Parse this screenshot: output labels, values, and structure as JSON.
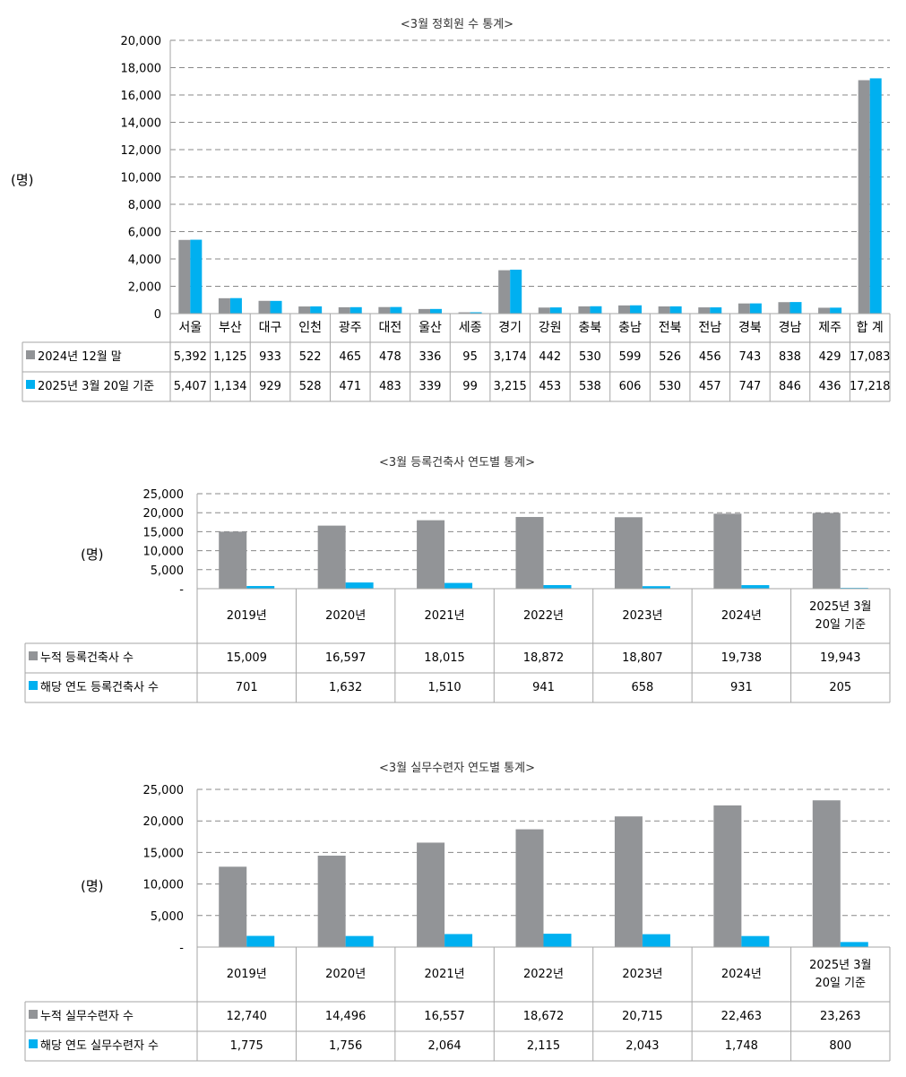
{
  "colors": {
    "series1": "#929497",
    "series2": "#00b0f0",
    "grid": "#888888",
    "border": "#a6a6a6"
  },
  "chart_data": [
    {
      "type": "bar",
      "title": "<3월 정회원 수 통계>",
      "ylabel": "(명)",
      "ylim": [
        0,
        20000
      ],
      "yticks": [
        "0",
        "2,000",
        "4,000",
        "6,000",
        "8,000",
        "10,000",
        "12,000",
        "14,000",
        "16,000",
        "18,000",
        "20,000"
      ],
      "grid": true,
      "categories": [
        "서울",
        "부산",
        "대구",
        "인천",
        "광주",
        "대전",
        "울산",
        "세종",
        "경기",
        "강원",
        "충북",
        "충남",
        "전북",
        "전남",
        "경북",
        "경남",
        "제주",
        "합 계"
      ],
      "series": [
        {
          "name": "2024년 12월 말",
          "values": [
            5392,
            1125,
            933,
            522,
            465,
            478,
            336,
            95,
            3174,
            442,
            530,
            599,
            526,
            456,
            743,
            838,
            429,
            17083
          ],
          "labels": [
            "5,392",
            "1,125",
            "933",
            "522",
            "465",
            "478",
            "336",
            "95",
            "3,174",
            "442",
            "530",
            "599",
            "526",
            "456",
            "743",
            "838",
            "429",
            "17,083"
          ]
        },
        {
          "name": "2025년 3월 20일 기준",
          "values": [
            5407,
            1134,
            929,
            528,
            471,
            483,
            339,
            99,
            3215,
            453,
            538,
            606,
            530,
            457,
            747,
            846,
            436,
            17218
          ],
          "labels": [
            "5,407",
            "1,134",
            "929",
            "528",
            "471",
            "483",
            "339",
            "99",
            "3,215",
            "453",
            "538",
            "606",
            "530",
            "457",
            "747",
            "846",
            "436",
            "17,218"
          ]
        }
      ]
    },
    {
      "type": "bar",
      "title": "<3월 등록건축사 연도별 통계>",
      "ylabel": "(명)",
      "ylim": [
        0,
        25000
      ],
      "yticks": [
        "-",
        "5,000",
        "10,000",
        "15,000",
        "20,000",
        "25,000"
      ],
      "grid": true,
      "categories": [
        "2019년",
        "2020년",
        "2021년",
        "2022년",
        "2023년",
        "2024년",
        "2025년 3월\n20일 기준"
      ],
      "series": [
        {
          "name": "누적 등록건축사 수",
          "values": [
            15009,
            16597,
            18015,
            18872,
            18807,
            19738,
            19943
          ],
          "labels": [
            "15,009",
            "16,597",
            "18,015",
            "18,872",
            "18,807",
            "19,738",
            "19,943"
          ]
        },
        {
          "name": "해당 연도 등록건축사 수",
          "values": [
            701,
            1632,
            1510,
            941,
            658,
            931,
            205
          ],
          "labels": [
            "701",
            "1,632",
            "1,510",
            "941",
            "658",
            "931",
            "205"
          ]
        }
      ]
    },
    {
      "type": "bar",
      "title": "<3월 실무수련자 연도별 통계>",
      "ylabel": "(명)",
      "ylim": [
        0,
        25000
      ],
      "yticks": [
        "-",
        "5,000",
        "10,000",
        "15,000",
        "20,000",
        "25,000"
      ],
      "grid": true,
      "categories": [
        "2019년",
        "2020년",
        "2021년",
        "2022년",
        "2023년",
        "2024년",
        "2025년 3월\n20일 기준"
      ],
      "series": [
        {
          "name": "누적 실무수련자 수",
          "values": [
            12740,
            14496,
            16557,
            18672,
            20715,
            22463,
            23263
          ],
          "labels": [
            "12,740",
            "14,496",
            "16,557",
            "18,672",
            "20,715",
            "22,463",
            "23,263"
          ]
        },
        {
          "name": "해당 연도 실무수련자 수",
          "values": [
            1775,
            1756,
            2064,
            2115,
            2043,
            1748,
            800
          ],
          "labels": [
            "1,775",
            "1,756",
            "2,064",
            "2,115",
            "2,043",
            "1,748",
            "800"
          ]
        }
      ]
    }
  ]
}
